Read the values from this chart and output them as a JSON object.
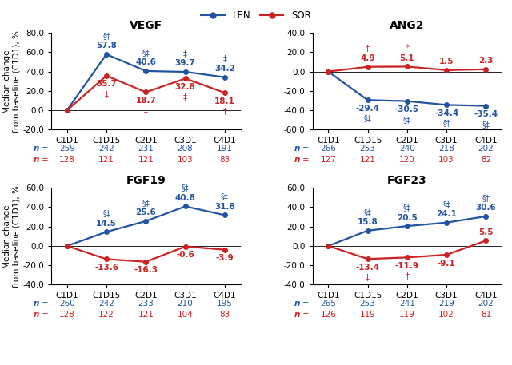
{
  "panels": [
    {
      "title": "VEGF",
      "ylim": [
        -20,
        80
      ],
      "yticks": [
        -20,
        0,
        20,
        40,
        60,
        80
      ],
      "len_values": [
        0,
        57.8,
        40.6,
        39.7,
        34.2
      ],
      "sor_values": [
        0,
        35.7,
        18.7,
        32.8,
        18.1
      ],
      "len_labels": [
        "",
        "57.8",
        "40.6",
        "39.7",
        "34.2"
      ],
      "sor_labels": [
        "",
        "35.7",
        "18.7",
        "32.8",
        "18.1"
      ],
      "len_annots": [
        "",
        "§‡",
        "§‡",
        "‡",
        "‡"
      ],
      "sor_annots": [
        "",
        "‡",
        "‡",
        "‡",
        "‡"
      ],
      "len_above": [
        true,
        true,
        true,
        true,
        true
      ],
      "sor_above": [
        true,
        false,
        false,
        false,
        false
      ],
      "n_len": [
        259,
        242,
        231,
        208,
        191
      ],
      "n_sor": [
        128,
        121,
        121,
        103,
        83
      ]
    },
    {
      "title": "ANG2",
      "ylim": [
        -60,
        40
      ],
      "yticks": [
        -60,
        -40,
        -20,
        0,
        20,
        40
      ],
      "len_values": [
        0,
        -29.4,
        -30.5,
        -34.4,
        -35.4
      ],
      "sor_values": [
        0,
        4.9,
        5.1,
        1.5,
        2.3
      ],
      "len_labels": [
        "",
        "-29.4",
        "-30.5",
        "-34.4",
        "-35.4"
      ],
      "sor_labels": [
        "",
        "4.9",
        "5.1",
        "1.5",
        "2.3"
      ],
      "len_annots": [
        "",
        "§‡",
        "§‡",
        "§‡",
        "§‡"
      ],
      "sor_annots": [
        "",
        "†",
        "*",
        "",
        ""
      ],
      "len_above": [
        true,
        false,
        false,
        false,
        false
      ],
      "sor_above": [
        true,
        true,
        true,
        true,
        true
      ],
      "n_len": [
        266,
        253,
        240,
        218,
        202
      ],
      "n_sor": [
        127,
        121,
        120,
        103,
        82
      ]
    },
    {
      "title": "FGF19",
      "ylim": [
        -40,
        60
      ],
      "yticks": [
        -40,
        -20,
        0,
        20,
        40,
        60
      ],
      "len_values": [
        0,
        14.5,
        25.6,
        40.8,
        31.8
      ],
      "sor_values": [
        0,
        -13.6,
        -16.3,
        -0.6,
        -3.9
      ],
      "len_labels": [
        "",
        "14.5",
        "25.6",
        "40.8",
        "31.8"
      ],
      "sor_labels": [
        "",
        "-13.6",
        "-16.3",
        "-0.6",
        "-3.9"
      ],
      "len_annots": [
        "",
        "§‡",
        "§‡",
        "§‡",
        "§‡"
      ],
      "sor_annots": [
        "",
        "",
        "",
        "",
        ""
      ],
      "len_above": [
        true,
        true,
        true,
        true,
        true
      ],
      "sor_above": [
        true,
        false,
        false,
        false,
        false
      ],
      "n_len": [
        260,
        242,
        233,
        210,
        195
      ],
      "n_sor": [
        128,
        122,
        121,
        104,
        83
      ]
    },
    {
      "title": "FGF23",
      "ylim": [
        -40,
        60
      ],
      "yticks": [
        -40,
        -20,
        0,
        20,
        40,
        60
      ],
      "len_values": [
        0,
        15.8,
        20.5,
        24.1,
        30.6
      ],
      "sor_values": [
        0,
        -13.4,
        -11.9,
        -9.1,
        5.5
      ],
      "len_labels": [
        "",
        "15.8",
        "20.5",
        "24.1",
        "30.6"
      ],
      "sor_labels": [
        "",
        "-13.4",
        "-11.9",
        "-9.1",
        "5.5"
      ],
      "len_annots": [
        "",
        "§‡",
        "§‡",
        "§‡",
        "§‡"
      ],
      "sor_annots": [
        "",
        "‡",
        "†",
        "",
        ""
      ],
      "len_above": [
        true,
        true,
        true,
        true,
        true
      ],
      "sor_above": [
        true,
        false,
        false,
        false,
        true
      ],
      "n_len": [
        265,
        253,
        241,
        219,
        202
      ],
      "n_sor": [
        126,
        119,
        119,
        102,
        81
      ]
    }
  ],
  "xticklabels": [
    "C1D1",
    "C1D15",
    "C2D1",
    "C3D1",
    "C4D1"
  ],
  "ylabel": "Median change\nfrom baseline (C1D1), %",
  "len_color": "#2155A3",
  "sor_color": "#CC2222",
  "legend_len": "LEN",
  "legend_sor": "SOR",
  "title_fontsize": 10,
  "val_fontsize": 7.5,
  "annot_fontsize": 7,
  "tick_fontsize": 7.5,
  "n_fontsize": 7.5,
  "ylabel_fontsize": 7.5
}
